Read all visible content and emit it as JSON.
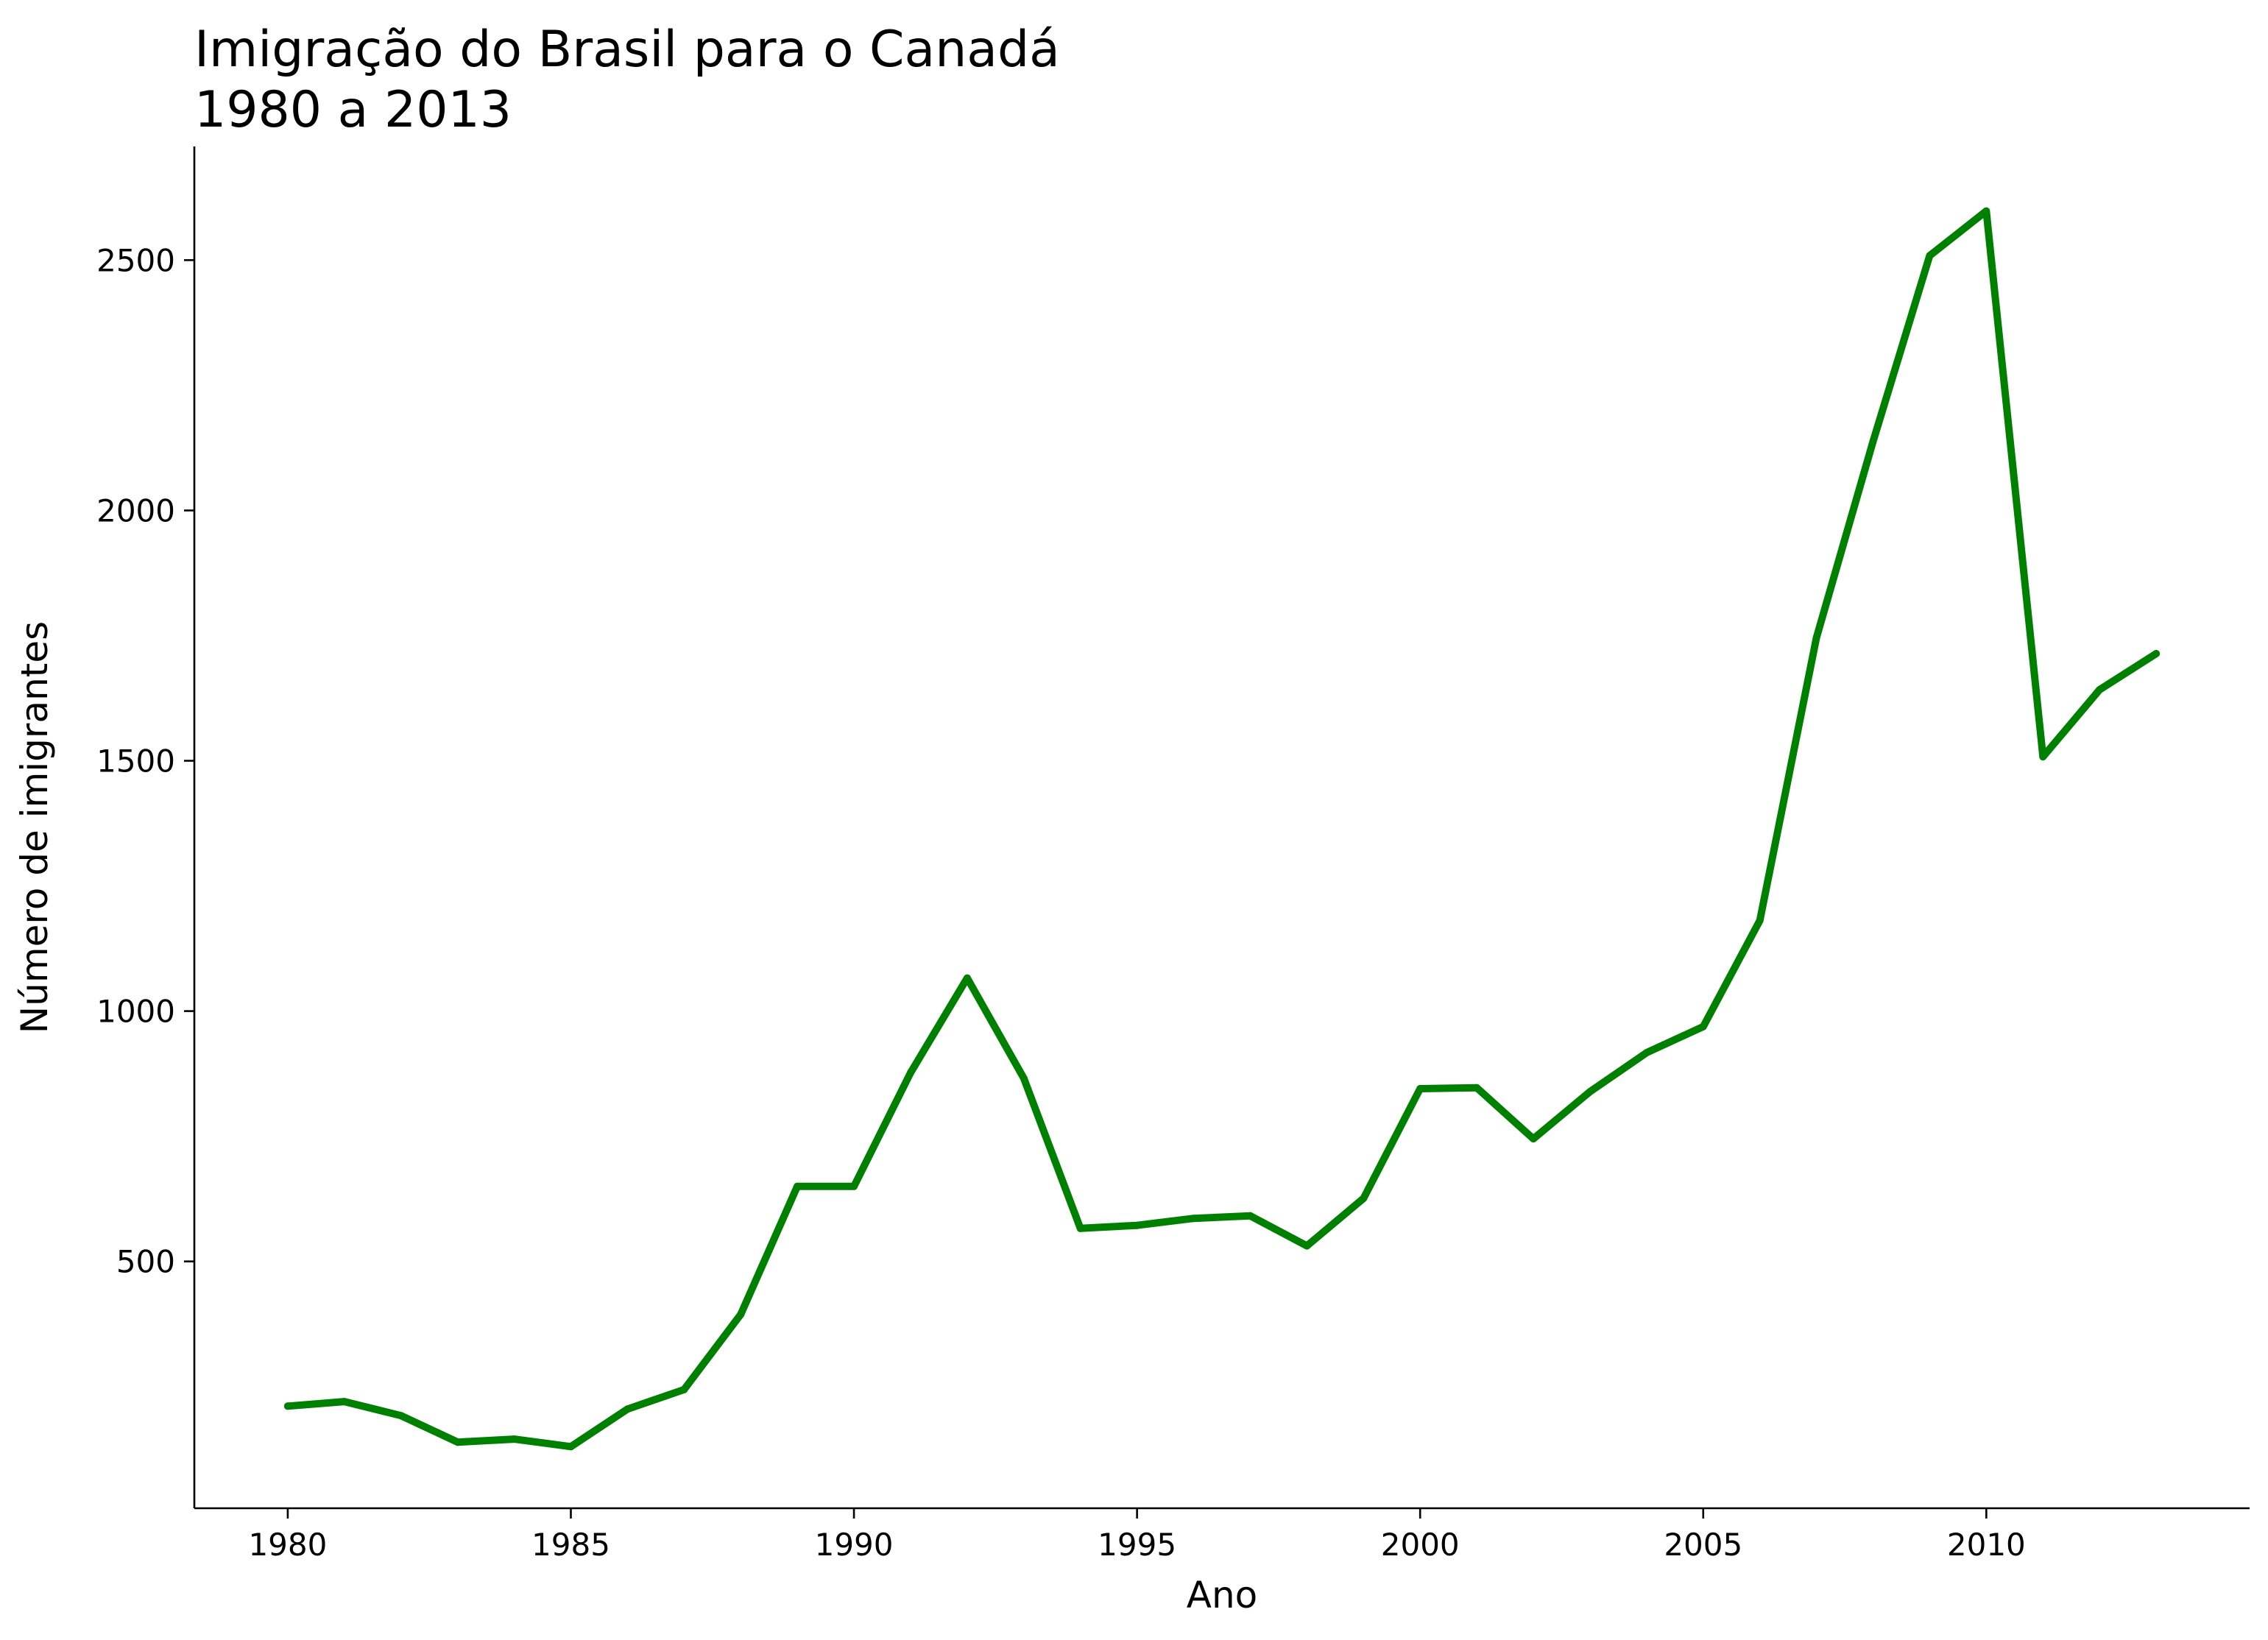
{
  "chart_data": {
    "type": "line",
    "title": [
      "Imigração do Brasil para o Canadá",
      "1980 a 2013"
    ],
    "xlabel": "Ano",
    "ylabel": "Número de imigrantes",
    "x": [
      1980,
      1981,
      1982,
      1983,
      1984,
      1985,
      1986,
      1987,
      1988,
      1989,
      1990,
      1991,
      1992,
      1993,
      1994,
      1995,
      1996,
      1997,
      1998,
      1999,
      2000,
      2001,
      2002,
      2003,
      2004,
      2005,
      2006,
      2007,
      2008,
      2009,
      2010,
      2011,
      2012,
      2013
    ],
    "series": [
      {
        "values": [
          211,
          220,
          192,
          139,
          145,
          130,
          205,
          244,
          394,
          650,
          650,
          877,
          1066,
          866,
          566,
          572,
          586,
          591,
          531,
          626,
          845,
          847,
          745,
          839,
          917,
          969,
          1181,
          1746,
          2138,
          2509,
          2598,
          1508,
          1642,
          1714
        ],
        "color": "#008000"
      }
    ],
    "xlim": [
      1978.35,
      2014.65
    ],
    "ylim": [
      7,
      2727
    ],
    "xticks": [
      "1980",
      "1985",
      "1990",
      "1995",
      "2000",
      "2005",
      "2010"
    ],
    "yticks": [
      "500",
      "1000",
      "1500",
      "2000",
      "2500"
    ],
    "grid": false
  }
}
